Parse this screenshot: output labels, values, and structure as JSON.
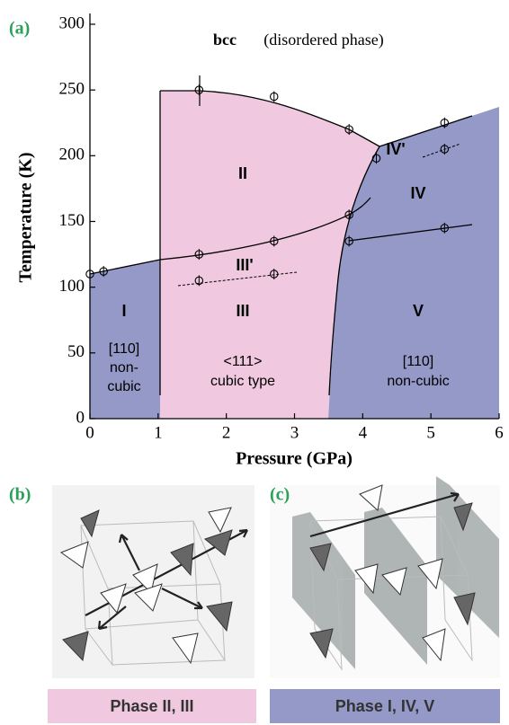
{
  "chart_data": {
    "type": "phase-diagram",
    "panel_label": "(a)",
    "x_label": "Pressure (GPa)",
    "y_label": "Temperature (K)",
    "xlim": [
      0,
      6
    ],
    "xticks": [
      0,
      1,
      2,
      3,
      4,
      5,
      6
    ],
    "ylim": [
      0,
      300
    ],
    "yticks": [
      0,
      50,
      100,
      150,
      200,
      250,
      300
    ],
    "points": {
      "x": [
        0,
        0.2,
        1.6,
        2.7,
        3.8,
        4.2,
        5.2,
        5.2,
        3.8,
        1.6,
        2.7,
        3.8,
        5.2,
        1.6,
        2.7
      ],
      "y": [
        110,
        112,
        250,
        245,
        220,
        198,
        225,
        205,
        155,
        125,
        135,
        135,
        145,
        105,
        110
      ]
    },
    "annotations": {
      "bcc": "bcc",
      "disordered": "(disordered phase)",
      "II": "II",
      "IIIp": "III'",
      "III": "III",
      "I": "I",
      "I_desc1": "[110]",
      "I_desc2": "non-",
      "I_desc3": "cubic",
      "III_desc1": "<111>",
      "III_desc2": "cubic type",
      "IVp": "IV'",
      "IV": "IV",
      "V": "V",
      "V_desc1": "[110]",
      "V_desc2": "non-cubic"
    }
  },
  "panels": {
    "b": {
      "label": "(b)",
      "caption": "Phase II, III"
    },
    "c": {
      "label": "(c)",
      "caption": "Phase I, IV, V"
    }
  }
}
